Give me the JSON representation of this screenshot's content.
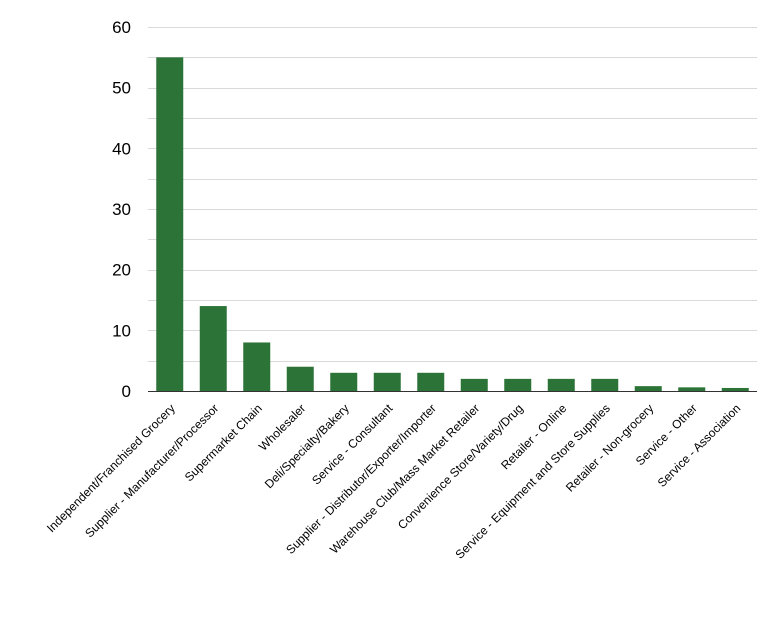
{
  "chart_data": {
    "type": "bar",
    "title": "",
    "xlabel": "",
    "ylabel": "",
    "ylim": [
      0,
      60
    ],
    "yticks": [
      0,
      10,
      20,
      30,
      40,
      50,
      60
    ],
    "grid": true,
    "bar_color": "#2b7336",
    "grid_color": "#d9d9d9",
    "categories": [
      "Independent/Franchised Grocery",
      "Supplier - Manufacturer/Processor",
      "Supermarket Chain",
      "Wholesaler",
      "Deli/Specialty/Bakery",
      "Service - Consultant",
      "Supplier - Distributor/Exporter/Importer",
      "Warehouse Club/Mass Market Retailer",
      "Convenience Store/Variety/Drug",
      "Retailer - Online",
      "Service - Equipment and Store Supplies",
      "Retailer - Non-grocery",
      "Service - Other",
      "Service - Association"
    ],
    "values": [
      55,
      14,
      8,
      4,
      3,
      3,
      3,
      2,
      2,
      2,
      2,
      0.8,
      0.6,
      0.5
    ]
  }
}
